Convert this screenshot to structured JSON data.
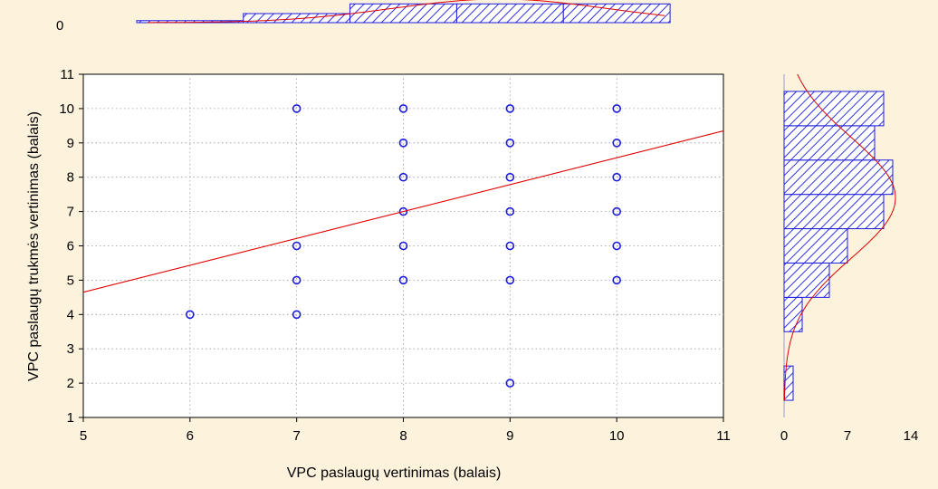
{
  "chart_data": {
    "type": "scatter",
    "title": "",
    "xlabel": "VPC paslaugų vertinimas (balais)",
    "ylabel": "VPC paslaugų trukmės vertinimas (balais)",
    "xlim": [
      5,
      11
    ],
    "ylim": [
      1,
      11
    ],
    "x_ticks": [
      "5",
      "6",
      "7",
      "8",
      "9",
      "10",
      "11"
    ],
    "y_ticks": [
      "1",
      "2",
      "3",
      "4",
      "5",
      "6",
      "7",
      "8",
      "9",
      "10",
      "11"
    ],
    "grid": true,
    "points": [
      {
        "x": 6,
        "y": 4
      },
      {
        "x": 7,
        "y": 4
      },
      {
        "x": 7,
        "y": 5
      },
      {
        "x": 7,
        "y": 6
      },
      {
        "x": 7,
        "y": 10
      },
      {
        "x": 8,
        "y": 5
      },
      {
        "x": 8,
        "y": 6
      },
      {
        "x": 8,
        "y": 7
      },
      {
        "x": 8,
        "y": 8
      },
      {
        "x": 8,
        "y": 9
      },
      {
        "x": 8,
        "y": 10
      },
      {
        "x": 9,
        "y": 2
      },
      {
        "x": 9,
        "y": 5
      },
      {
        "x": 9,
        "y": 6
      },
      {
        "x": 9,
        "y": 7
      },
      {
        "x": 9,
        "y": 8
      },
      {
        "x": 9,
        "y": 9
      },
      {
        "x": 9,
        "y": 10
      },
      {
        "x": 10,
        "y": 5
      },
      {
        "x": 10,
        "y": 6
      },
      {
        "x": 10,
        "y": 7
      },
      {
        "x": 10,
        "y": 8
      },
      {
        "x": 10,
        "y": 9
      },
      {
        "x": 10,
        "y": 10
      }
    ],
    "regression_line": {
      "x": [
        5,
        11
      ],
      "y": [
        4.65,
        9.35
      ]
    },
    "top_histogram": {
      "tick_label": "0",
      "bins": [
        6,
        7,
        8,
        9,
        10
      ],
      "counts": [
        0.6,
        2.7,
        5.6,
        5.6,
        5.6
      ]
    },
    "right_histogram": {
      "xlim": [
        0,
        14
      ],
      "x_ticks": [
        "0",
        "7",
        "14"
      ],
      "bins": [
        2,
        3,
        4,
        5,
        6,
        7,
        8,
        9,
        10
      ],
      "counts": [
        1,
        0,
        2,
        5,
        7,
        11,
        12,
        10,
        11
      ]
    },
    "colors": {
      "marker": "#1a1ae0",
      "bar_fill": "#1a1ae0",
      "regression": "#e00000",
      "background": "#fdf3dd",
      "plot_bg": "#ffffff"
    }
  }
}
